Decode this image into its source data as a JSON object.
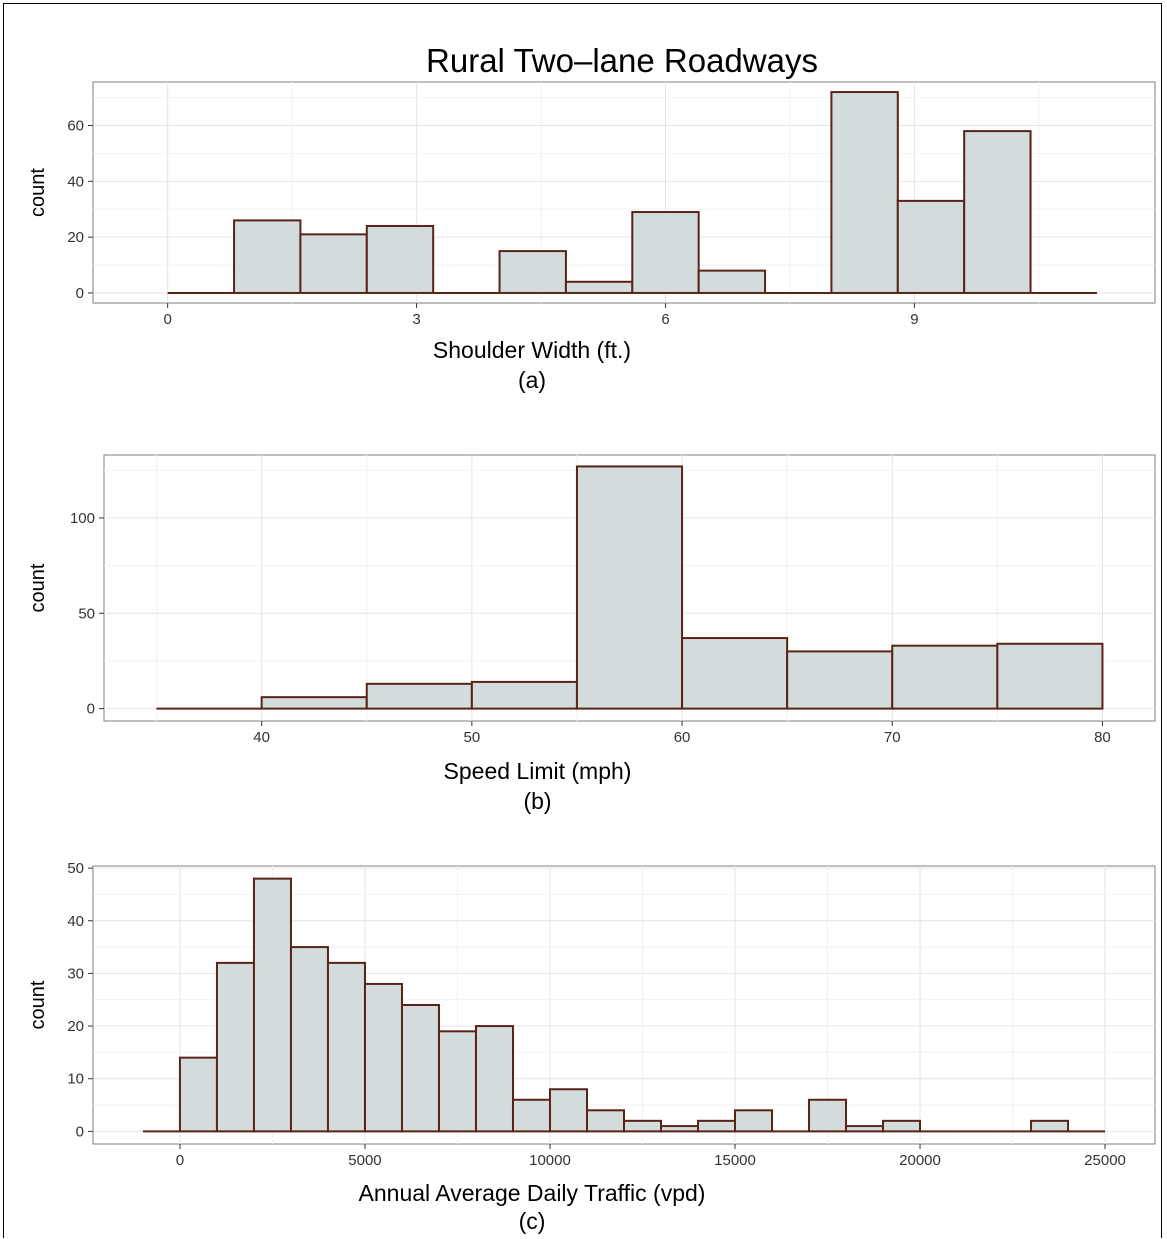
{
  "title": "Rural Two–lane Roadways",
  "chart_data": [
    {
      "type": "bar",
      "subtitle": "(a)",
      "xlabel": "Shoulder Width (ft.)",
      "ylabel": "count",
      "xlim": [
        -0.9,
        11.9
      ],
      "ylim": [
        -3.6,
        75.6
      ],
      "x_ticks": [
        0,
        3,
        6,
        9
      ],
      "y_ticks": [
        0,
        20,
        40,
        60
      ],
      "bins": [
        {
          "x0": 0.0,
          "x1": 0.8,
          "count": 0
        },
        {
          "x0": 0.8,
          "x1": 1.6,
          "count": 26
        },
        {
          "x0": 1.6,
          "x1": 2.4,
          "count": 21
        },
        {
          "x0": 2.4,
          "x1": 3.2,
          "count": 24
        },
        {
          "x0": 3.2,
          "x1": 4.0,
          "count": 0
        },
        {
          "x0": 4.0,
          "x1": 4.8,
          "count": 15
        },
        {
          "x0": 4.8,
          "x1": 5.6,
          "count": 4
        },
        {
          "x0": 5.6,
          "x1": 6.4,
          "count": 29
        },
        {
          "x0": 6.4,
          "x1": 7.2,
          "count": 8
        },
        {
          "x0": 7.2,
          "x1": 8.0,
          "count": 0
        },
        {
          "x0": 8.0,
          "x1": 8.8,
          "count": 72
        },
        {
          "x0": 8.8,
          "x1": 9.6,
          "count": 33
        },
        {
          "x0": 9.6,
          "x1": 10.4,
          "count": 58
        },
        {
          "x0": 10.4,
          "x1": 11.2,
          "count": 0
        }
      ],
      "grid": true,
      "fill": "#d3dcdc",
      "stroke": "#5a2318"
    },
    {
      "type": "bar",
      "subtitle": "(b)",
      "xlabel": "Speed Limit (mph)",
      "ylabel": "count",
      "xlim": [
        32.5,
        82.5
      ],
      "ylim": [
        -6.5,
        133
      ],
      "x_ticks": [
        40,
        50,
        60,
        70,
        80
      ],
      "y_ticks": [
        0,
        50,
        100
      ],
      "bins": [
        {
          "x0": 35,
          "x1": 40,
          "count": 0
        },
        {
          "x0": 40,
          "x1": 45,
          "count": 6
        },
        {
          "x0": 45,
          "x1": 50,
          "count": 13
        },
        {
          "x0": 50,
          "x1": 55,
          "count": 14
        },
        {
          "x0": 55,
          "x1": 60,
          "count": 127
        },
        {
          "x0": 60,
          "x1": 65,
          "count": 37
        },
        {
          "x0": 65,
          "x1": 70,
          "count": 30
        },
        {
          "x0": 70,
          "x1": 75,
          "count": 33
        },
        {
          "x0": 75,
          "x1": 80,
          "count": 34
        }
      ],
      "grid": true,
      "fill": "#d3dcdc",
      "stroke": "#5a2318"
    },
    {
      "type": "bar",
      "subtitle": "(c)",
      "xlabel": "Annual Average Daily Traffic (vpd)",
      "ylabel": "count",
      "xlim": [
        -2350,
        26350
      ],
      "ylim": [
        -2.4,
        50.4
      ],
      "x_ticks": [
        0,
        5000,
        10000,
        15000,
        20000,
        25000
      ],
      "y_ticks": [
        0,
        10,
        20,
        30,
        40,
        50
      ],
      "bins": [
        {
          "x0": -1000,
          "x1": 0,
          "count": 0
        },
        {
          "x0": 0,
          "x1": 1000,
          "count": 14
        },
        {
          "x0": 1000,
          "x1": 2000,
          "count": 32
        },
        {
          "x0": 2000,
          "x1": 3000,
          "count": 48
        },
        {
          "x0": 3000,
          "x1": 4000,
          "count": 35
        },
        {
          "x0": 4000,
          "x1": 5000,
          "count": 32
        },
        {
          "x0": 5000,
          "x1": 6000,
          "count": 28
        },
        {
          "x0": 6000,
          "x1": 7000,
          "count": 24
        },
        {
          "x0": 7000,
          "x1": 8000,
          "count": 19
        },
        {
          "x0": 8000,
          "x1": 9000,
          "count": 20
        },
        {
          "x0": 9000,
          "x1": 10000,
          "count": 6
        },
        {
          "x0": 10000,
          "x1": 11000,
          "count": 8
        },
        {
          "x0": 11000,
          "x1": 12000,
          "count": 4
        },
        {
          "x0": 12000,
          "x1": 13000,
          "count": 2
        },
        {
          "x0": 13000,
          "x1": 14000,
          "count": 1
        },
        {
          "x0": 14000,
          "x1": 15000,
          "count": 2
        },
        {
          "x0": 15000,
          "x1": 16000,
          "count": 4
        },
        {
          "x0": 16000,
          "x1": 17000,
          "count": 0
        },
        {
          "x0": 17000,
          "x1": 18000,
          "count": 6
        },
        {
          "x0": 18000,
          "x1": 19000,
          "count": 1
        },
        {
          "x0": 19000,
          "x1": 20000,
          "count": 2
        },
        {
          "x0": 20000,
          "x1": 21000,
          "count": 0
        },
        {
          "x0": 21000,
          "x1": 22000,
          "count": 0
        },
        {
          "x0": 22000,
          "x1": 23000,
          "count": 0
        },
        {
          "x0": 23000,
          "x1": 24000,
          "count": 2
        },
        {
          "x0": 24000,
          "x1": 25000,
          "count": 0
        }
      ],
      "grid": true,
      "fill": "#d3dcdc",
      "stroke": "#5a2318"
    }
  ]
}
